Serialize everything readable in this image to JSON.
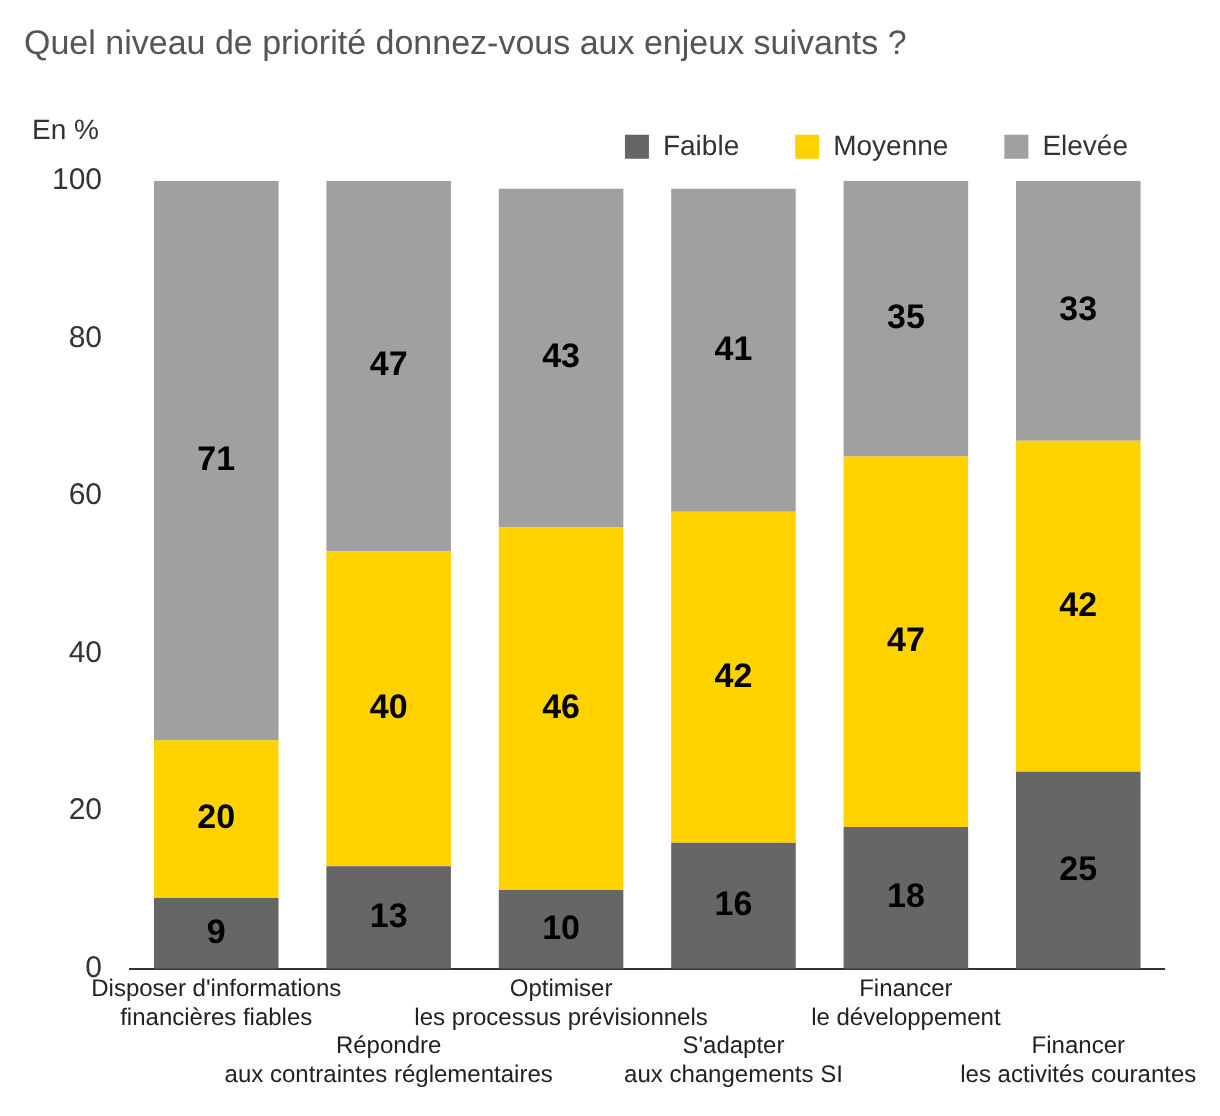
{
  "chart_data": {
    "type": "bar",
    "title": "Quel niveau de priorité donnez-vous aux enjeux suivants ?",
    "ylabel": "En %",
    "categories": [
      "Disposer d'informations\nfinancières fiables",
      "Répondre\naux contraintes réglementaires",
      "Optimiser\nles processus prévisionnels",
      "S'adapter\naux changements SI",
      "Financer\nle développement",
      "Financer\nles activités courantes"
    ],
    "series": [
      {
        "name": "Faible",
        "color": "#666666",
        "values": [
          9,
          13,
          10,
          16,
          18,
          25
        ]
      },
      {
        "name": "Moyenne",
        "color": "#ffd200",
        "values": [
          20,
          40,
          46,
          42,
          47,
          42
        ]
      },
      {
        "name": "Elevée",
        "color": "#a0a0a0",
        "values": [
          71,
          47,
          43,
          41,
          35,
          33
        ]
      }
    ],
    "stacked": true,
    "ylim": [
      0,
      100
    ],
    "yticks": [
      0,
      20,
      40,
      60,
      80,
      100
    ],
    "grid": false,
    "legend": "top right",
    "data_labels": true
  }
}
